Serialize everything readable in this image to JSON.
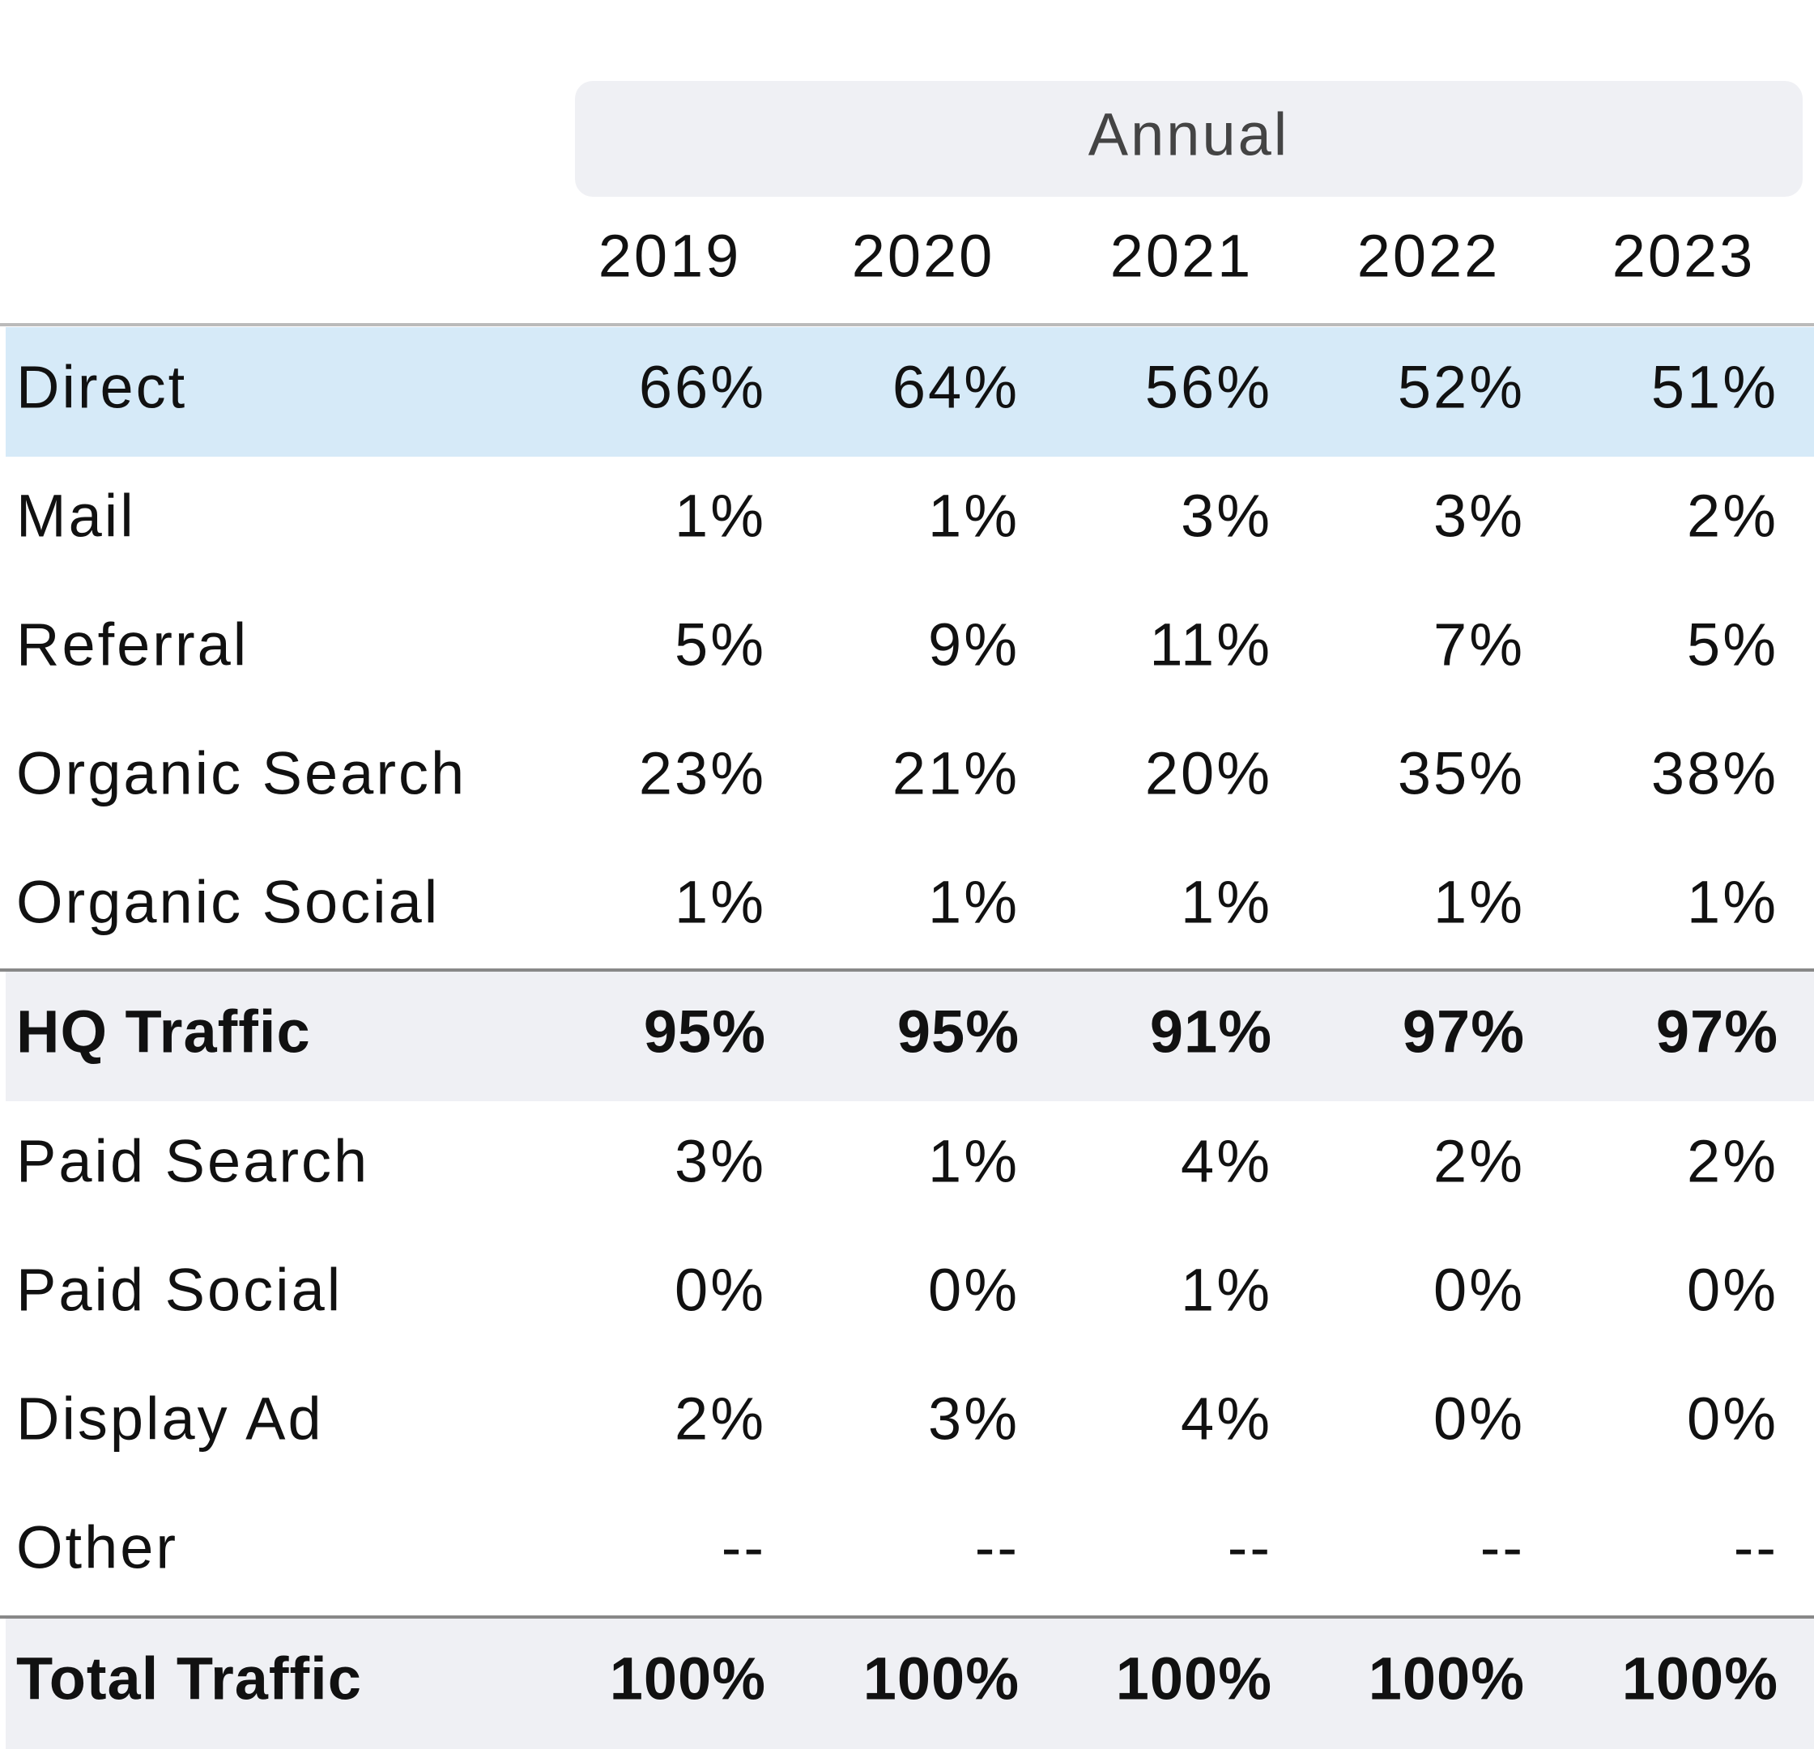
{
  "table": {
    "group_header": "Annual",
    "columns": [
      "2019",
      "2020",
      "2021",
      "2022",
      "2023"
    ],
    "rows": [
      {
        "label": "Direct",
        "values": [
          "66%",
          "64%",
          "56%",
          "52%",
          "51%"
        ]
      },
      {
        "label": "Mail",
        "values": [
          "1%",
          "1%",
          "3%",
          "3%",
          "2%"
        ]
      },
      {
        "label": "Referral",
        "values": [
          "5%",
          "9%",
          "11%",
          "7%",
          "5%"
        ]
      },
      {
        "label": "Organic Search",
        "values": [
          "23%",
          "21%",
          "20%",
          "35%",
          "38%"
        ]
      },
      {
        "label": "Organic Social",
        "values": [
          "1%",
          "1%",
          "1%",
          "1%",
          "1%"
        ]
      },
      {
        "label": "HQ Traffic",
        "values": [
          "95%",
          "95%",
          "91%",
          "97%",
          "97%"
        ]
      },
      {
        "label": "Paid Search",
        "values": [
          "3%",
          "1%",
          "4%",
          "2%",
          "2%"
        ]
      },
      {
        "label": "Paid Social",
        "values": [
          "0%",
          "0%",
          "1%",
          "0%",
          "0%"
        ]
      },
      {
        "label": "Display Ad",
        "values": [
          "2%",
          "3%",
          "4%",
          "0%",
          "0%"
        ]
      },
      {
        "label": "Other",
        "values": [
          "--",
          "--",
          "--",
          "--",
          "--"
        ]
      },
      {
        "label": "Total Traffic",
        "values": [
          "100%",
          "100%",
          "100%",
          "100%",
          "100%"
        ]
      }
    ]
  }
}
